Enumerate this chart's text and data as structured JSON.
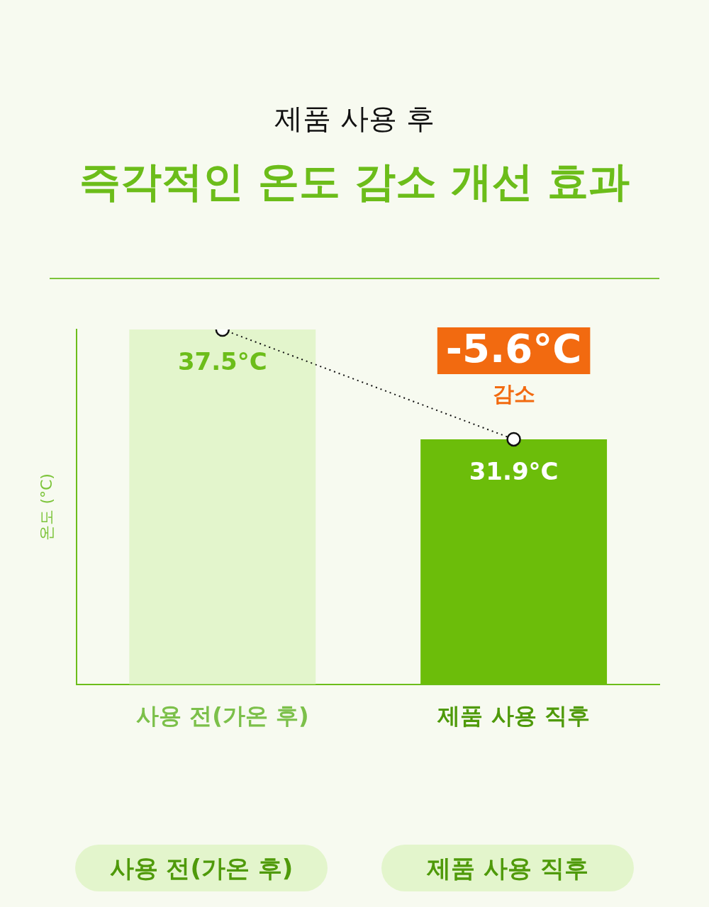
{
  "chart_data": {
    "type": "bar",
    "subtitle": "제품 사용 후",
    "title": "즉각적인 온도 감소 개선 효과",
    "ylabel": "온도 (°C)",
    "categories": [
      "사용 전(가온 후)",
      "제품 사용 직후"
    ],
    "series": [
      {
        "colors": [
          "#e3f5cc",
          "#6cbd0a"
        ],
        "values": [
          37.5,
          31.9
        ],
        "value_labels": [
          "37.5°C",
          "31.9°C"
        ]
      },
      {
        "type": "line",
        "color": "#111111",
        "values": [
          37.5,
          31.9
        ],
        "marker": "circle",
        "line_style": "dotted"
      }
    ],
    "ylim": [
      19.4,
      37.5
    ],
    "grid": false,
    "legend": false,
    "annotations": [
      "-5.6°C",
      "감소",
      "사용 전(가온 후)",
      "제품 사용 직후"
    ]
  }
}
